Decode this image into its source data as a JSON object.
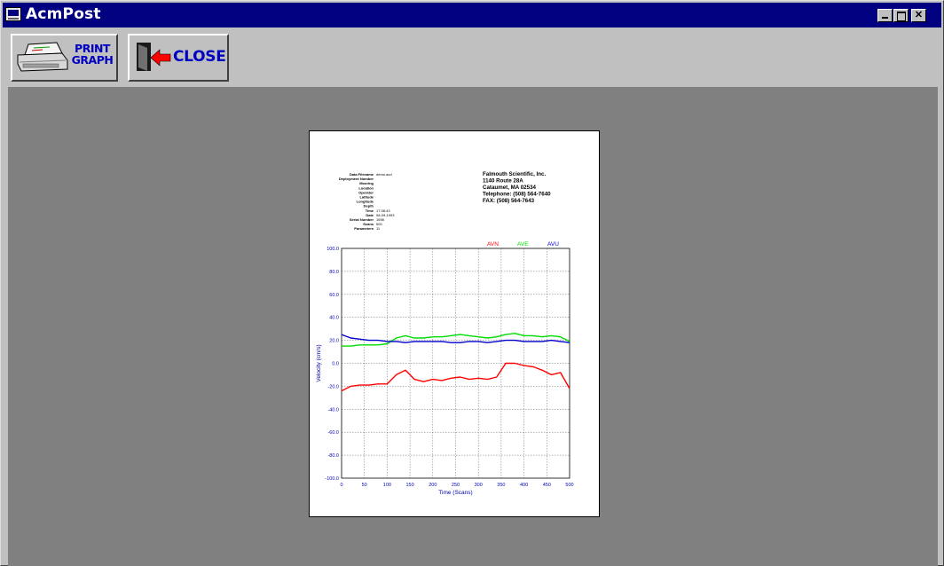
{
  "window": {
    "title": "AcmPost",
    "controls": {
      "minimize": "_",
      "maximize": "□",
      "close": "✕"
    }
  },
  "toolbar": {
    "print_label_line1": "PRINT",
    "print_label_line2": "GRAPH",
    "close_label": "CLOSE"
  },
  "report": {
    "header_fields": [
      {
        "label": "Data Filename",
        "value": "demo.acd"
      },
      {
        "label": "Deployment Number",
        "value": ""
      },
      {
        "label": "Mooring",
        "value": ""
      },
      {
        "label": "Location",
        "value": ""
      },
      {
        "label": "Operator",
        "value": ""
      },
      {
        "label": "Latitude",
        "value": ""
      },
      {
        "label": "Longitude",
        "value": ""
      },
      {
        "label": "Depth",
        "value": ""
      },
      {
        "label": "Time",
        "value": "17:38:43"
      },
      {
        "label": "Date",
        "value": "08-09-1993"
      },
      {
        "label": "Serial Number",
        "value": "1698"
      },
      {
        "label": "Scans",
        "value": "500"
      },
      {
        "label": "Parameters",
        "value": "11"
      }
    ],
    "company": [
      "Falmouth Scientific, Inc.",
      "1140 Route 28A",
      "Cataumet, MA 02534",
      "Telephone: (508) 564-7640",
      "FAX: (508) 564-7643"
    ]
  },
  "chart_data": {
    "type": "line",
    "title": "",
    "xlabel": "Time (Scans)",
    "ylabel": "Velocity (cm/s)",
    "xlim": [
      0,
      500
    ],
    "ylim": [
      -100,
      100
    ],
    "x_ticks": [
      0,
      50,
      100,
      150,
      200,
      250,
      300,
      350,
      400,
      450,
      500
    ],
    "y_ticks": [
      -100,
      -80,
      -60,
      -40,
      -20,
      0,
      20,
      40,
      60,
      80,
      100
    ],
    "grid": true,
    "legend_position": "top-right",
    "x": [
      0,
      20,
      40,
      60,
      80,
      100,
      120,
      140,
      160,
      180,
      200,
      220,
      240,
      260,
      280,
      300,
      320,
      340,
      360,
      380,
      400,
      420,
      440,
      460,
      480,
      500
    ],
    "series": [
      {
        "name": "AVN",
        "color": "#ff0000",
        "values": [
          -24,
          -20,
          -19,
          -19,
          -18,
          -18,
          -10,
          -6,
          -14,
          -16,
          -14,
          -15,
          -13,
          -12,
          -14,
          -13,
          -14,
          -12,
          0,
          0,
          -2,
          -3,
          -6,
          -10,
          -8,
          -22
        ]
      },
      {
        "name": "AVE",
        "color": "#00dd00",
        "values": [
          15,
          15,
          16,
          16,
          16,
          17,
          22,
          24,
          22,
          22,
          23,
          23,
          24,
          25,
          24,
          23,
          22,
          23,
          25,
          26,
          24,
          24,
          23,
          24,
          23,
          19
        ]
      },
      {
        "name": "AVU",
        "color": "#0000cc",
        "values": [
          25,
          22,
          21,
          20,
          20,
          19,
          19,
          18,
          19,
          19,
          19,
          19,
          18,
          18,
          19,
          19,
          18,
          19,
          20,
          20,
          19,
          19,
          19,
          20,
          19,
          18
        ]
      }
    ]
  }
}
